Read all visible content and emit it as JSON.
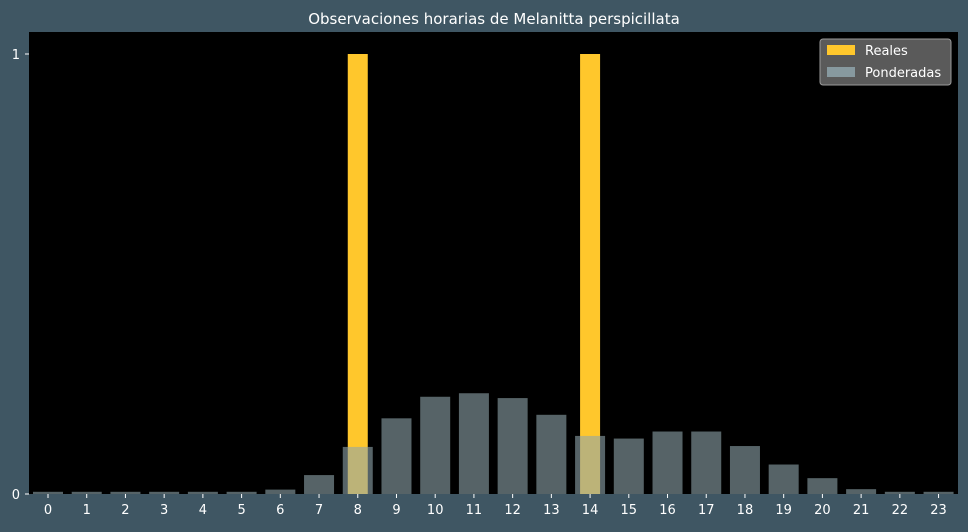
{
  "chart_data": {
    "type": "bar",
    "title": "Observaciones horarias de Melanitta perspicillata",
    "xlabel": "",
    "ylabel": "",
    "categories": [
      "0",
      "1",
      "2",
      "3",
      "4",
      "5",
      "6",
      "7",
      "8",
      "9",
      "10",
      "11",
      "12",
      "13",
      "14",
      "15",
      "16",
      "17",
      "18",
      "19",
      "20",
      "21",
      "22",
      "23"
    ],
    "series": [
      {
        "name": "Reales",
        "color": "#ffc72c",
        "values": [
          0,
          0,
          0,
          0,
          0,
          0,
          0,
          0,
          1,
          0,
          0,
          0,
          0,
          0,
          1,
          0,
          0,
          0,
          0,
          0,
          0,
          0,
          0,
          0
        ]
      },
      {
        "name": "Ponderadas",
        "color": "#8fa5ab",
        "values": [
          0.005,
          0.005,
          0.005,
          0.005,
          0.005,
          0.005,
          0.01,
          0.043,
          0.107,
          0.172,
          0.221,
          0.229,
          0.218,
          0.18,
          0.132,
          0.126,
          0.142,
          0.142,
          0.109,
          0.067,
          0.036,
          0.011,
          0.005,
          0.005
        ]
      }
    ],
    "yticks": [
      "0",
      "1"
    ],
    "ylim": [
      0,
      1.05
    ],
    "legend_position": "top-right",
    "background": "#000000",
    "figure_background": "#3f5663"
  }
}
